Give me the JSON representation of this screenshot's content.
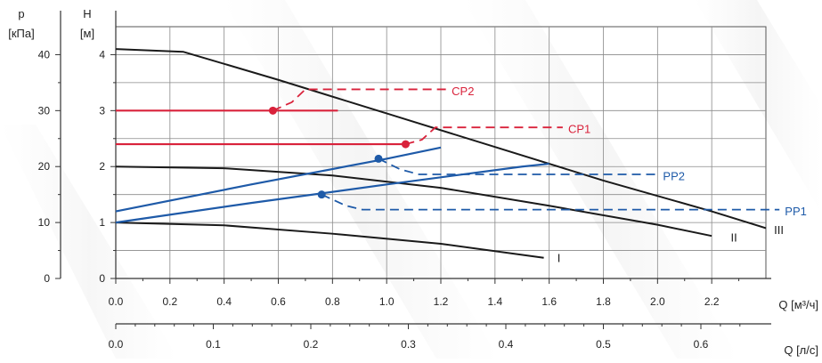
{
  "chart_data": {
    "type": "line",
    "titles": {
      "p_axis": "p",
      "p_unit": "[кПа]",
      "h_axis": "H",
      "h_unit": "[м]",
      "q_m3h": "Q [м³/ч]",
      "q_ls": "Q [л/с]"
    },
    "axes": {
      "h": {
        "range": [
          0,
          4.5
        ],
        "ticks": [
          0,
          1,
          2,
          3,
          4
        ],
        "tick_labels": [
          "0",
          "1",
          "2",
          "3",
          "4"
        ]
      },
      "p": {
        "range": [
          0,
          45
        ],
        "ticks": [
          0,
          10,
          20,
          30,
          40
        ],
        "tick_labels": [
          "0",
          "10",
          "20",
          "30",
          "40"
        ]
      },
      "q_m3h": {
        "range": [
          0,
          2.4
        ],
        "ticks": [
          0,
          0.2,
          0.4,
          0.6,
          0.8,
          1.0,
          1.2,
          1.4,
          1.6,
          1.8,
          2.0,
          2.2
        ],
        "tick_labels": [
          "0.0",
          "0.2",
          "0.4",
          "0.6",
          "0.8",
          "1.0",
          "1.2",
          "1.4",
          "1.6",
          "1.8",
          "2.0",
          "2.2"
        ]
      },
      "q_ls": {
        "ticks": [
          0,
          0.1,
          0.2,
          0.3,
          0.4,
          0.5,
          0.6
        ],
        "tick_labels": [
          "0.0",
          "0.1",
          "0.2",
          "0.3",
          "0.4",
          "0.5",
          "0.6"
        ]
      }
    },
    "grid": true,
    "series": [
      {
        "name": "I",
        "color": "#1a1a1a",
        "points": [
          [
            0,
            1.0
          ],
          [
            0.4,
            0.95
          ],
          [
            0.8,
            0.8
          ],
          [
            1.2,
            0.62
          ],
          [
            1.58,
            0.37
          ]
        ]
      },
      {
        "name": "II",
        "color": "#1a1a1a",
        "points": [
          [
            0,
            2.0
          ],
          [
            0.4,
            1.97
          ],
          [
            0.8,
            1.84
          ],
          [
            1.2,
            1.62
          ],
          [
            1.6,
            1.3
          ],
          [
            2.0,
            0.96
          ],
          [
            2.2,
            0.76
          ]
        ]
      },
      {
        "name": "III",
        "color": "#1a1a1a",
        "points": [
          [
            0,
            4.1
          ],
          [
            0.25,
            4.05
          ],
          [
            0.6,
            3.55
          ],
          [
            1.0,
            2.95
          ],
          [
            1.4,
            2.35
          ],
          [
            1.8,
            1.75
          ],
          [
            2.2,
            1.2
          ],
          [
            2.4,
            0.9
          ]
        ]
      },
      {
        "name": "CP1",
        "color": "#d9223b",
        "points": [
          [
            0,
            2.4
          ],
          [
            1.07,
            2.4
          ]
        ],
        "operating_point": [
          1.07,
          2.4
        ],
        "leader": [
          [
            1.07,
            2.4
          ],
          [
            1.13,
            2.48
          ],
          [
            1.18,
            2.7
          ],
          [
            1.65,
            2.7
          ]
        ]
      },
      {
        "name": "CP2",
        "color": "#d9223b",
        "points": [
          [
            0,
            3.0
          ],
          [
            0.82,
            3.0
          ]
        ],
        "operating_point": [
          0.58,
          3.0
        ],
        "leader": [
          [
            0.58,
            3.0
          ],
          [
            0.65,
            3.15
          ],
          [
            0.7,
            3.38
          ],
          [
            1.22,
            3.38
          ]
        ]
      },
      {
        "name": "PP1",
        "color": "#1e5aa8",
        "points": [
          [
            0,
            1.0
          ],
          [
            0.5,
            1.35
          ],
          [
            1.0,
            1.68
          ],
          [
            1.5,
            2.0
          ],
          [
            1.6,
            2.05
          ]
        ],
        "operating_point": [
          0.76,
          1.5
        ],
        "leader": [
          [
            0.76,
            1.5
          ],
          [
            0.85,
            1.3
          ],
          [
            0.91,
            1.23
          ],
          [
            2.45,
            1.23
          ]
        ]
      },
      {
        "name": "PP2",
        "color": "#1e5aa8",
        "points": [
          [
            0,
            1.2
          ],
          [
            0.5,
            1.68
          ],
          [
            1.0,
            2.14
          ],
          [
            1.2,
            2.34
          ]
        ],
        "operating_point": [
          0.97,
          2.14
        ],
        "leader": [
          [
            0.97,
            2.14
          ],
          [
            1.05,
            1.95
          ],
          [
            1.12,
            1.86
          ],
          [
            2.0,
            1.86
          ]
        ]
      }
    ],
    "labels": [
      "I",
      "II",
      "III",
      "CP1",
      "CP2",
      "PP1",
      "PP2"
    ]
  }
}
